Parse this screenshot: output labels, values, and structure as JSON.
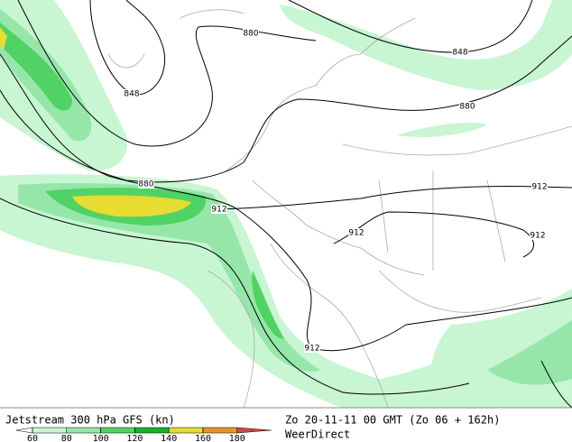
{
  "map": {
    "contour_labels": [
      880,
      848,
      848,
      880,
      880,
      912,
      912,
      912,
      912,
      912
    ]
  },
  "legend": {
    "title": "Jetstream 300 hPa GFS (kn)",
    "ticks": [
      60,
      80,
      100,
      120,
      140,
      160,
      180
    ],
    "colors": [
      "#c8f5d2",
      "#96e6aa",
      "#50d264",
      "#14b428",
      "#e6dc32",
      "#e69628",
      "#d24646"
    ]
  },
  "footer": {
    "timestamp": "Zo 20-11-11 00 GMT (Zo 06 + 162h)",
    "source": "WeerDirect"
  }
}
